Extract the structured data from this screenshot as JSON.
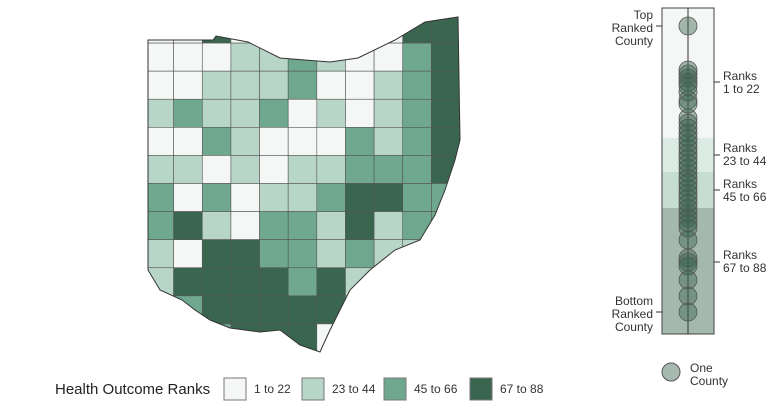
{
  "legend": {
    "title": "Health Outcome Ranks",
    "items": [
      {
        "label": "1 to 22",
        "color": "#f4f7f6"
      },
      {
        "label": "23 to 44",
        "color": "#b7d6c8"
      },
      {
        "label": "45 to 66",
        "color": "#6fa88f"
      },
      {
        "label": "67 to 88",
        "color": "#3a6650"
      }
    ]
  },
  "strip": {
    "top_label": "Top\nRanked\nCounty",
    "bottom_label": "Bottom\nRanked\nCounty",
    "bands": [
      "Ranks\n1 to 22",
      "Ranks\n23 to 44",
      "Ranks\n45 to 66",
      "Ranks\n67 to 88"
    ],
    "key": "One\nCounty"
  }
}
